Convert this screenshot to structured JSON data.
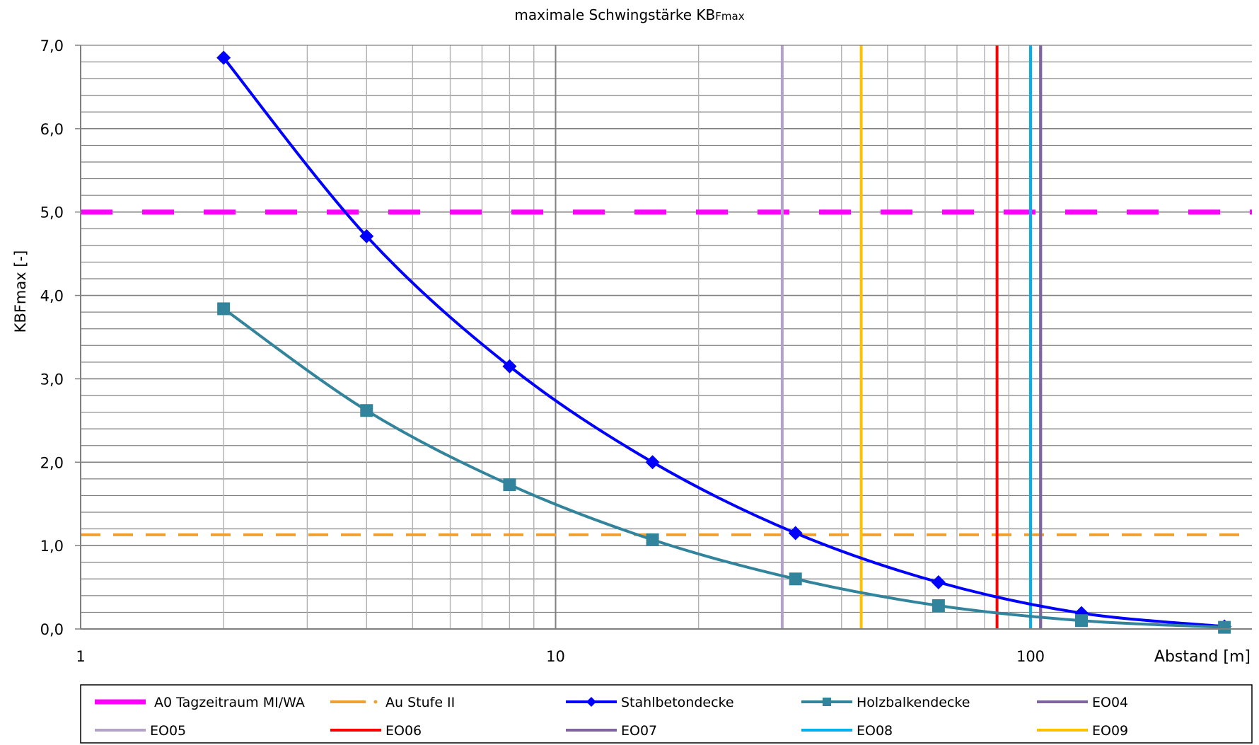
{
  "chart_data": {
    "type": "line",
    "title_main": "maximale Schwingstärke KB",
    "title_sub": "Fmax",
    "ylabel": "KBFmax [-]",
    "xlabel": "Abstand [m]",
    "x_scale": "log",
    "xlim": [
      1,
      140
    ],
    "ylim": [
      0,
      7
    ],
    "grid": true,
    "y_ticks": [
      "0,0",
      "1,0",
      "2,0",
      "3,0",
      "4,0",
      "5,0",
      "6,0",
      "7,0"
    ],
    "x_ticks": [
      "1",
      "10",
      "100"
    ],
    "legend_position": "bottom",
    "series": [
      {
        "name": "Stahlbetondecke",
        "color": "#0000ff",
        "marker": "diamond",
        "x": [
          2,
          4,
          8,
          16,
          32,
          64,
          128,
          256
        ],
        "y": [
          6.85,
          4.71,
          3.15,
          2.0,
          1.15,
          0.56,
          0.19,
          0.03
        ]
      },
      {
        "name": "Holzbalkendecke",
        "color": "#31849b",
        "marker": "square",
        "x": [
          2,
          4,
          8,
          16,
          32,
          64,
          128,
          256
        ],
        "y": [
          3.84,
          2.62,
          1.73,
          1.07,
          0.6,
          0.28,
          0.1,
          0.02
        ]
      }
    ],
    "hlines": [
      {
        "name": "A0 Tagzeitraum MI/WA",
        "y": 5.0,
        "color": "#ff00ff",
        "style": "dash-bold"
      },
      {
        "name": "Au Stufe II",
        "y": 1.13,
        "color": "#f0a030",
        "style": "dash"
      }
    ],
    "vlines": [
      {
        "name": "EO04",
        "x": 105,
        "color": "#8064a2"
      },
      {
        "name": "EO05",
        "x": 30,
        "color": "#b3a2c7"
      },
      {
        "name": "EO06",
        "x": 85,
        "color": "#ff0000"
      },
      {
        "name": "EO07",
        "x": 105,
        "color": "#8064a2"
      },
      {
        "name": "EO08",
        "x": 100,
        "color": "#00b0f0"
      },
      {
        "name": "EO09",
        "x": 44,
        "color": "#ffc000"
      }
    ],
    "legend": [
      {
        "label": "A0 Tagzeitraum MI/WA",
        "color": "#ff00ff",
        "kind": "dash-bold"
      },
      {
        "label": "Au Stufe II",
        "color": "#f0a030",
        "kind": "dash"
      },
      {
        "label": "Stahlbetondecke",
        "color": "#0000ff",
        "kind": "diamond"
      },
      {
        "label": "Holzbalkendecke",
        "color": "#31849b",
        "kind": "square"
      },
      {
        "label": "EO04",
        "color": "#8064a2",
        "kind": "line"
      },
      {
        "label": "EO05",
        "color": "#b3a2c7",
        "kind": "line"
      },
      {
        "label": "EO06",
        "color": "#ff0000",
        "kind": "line"
      },
      {
        "label": "EO07",
        "color": "#8064a2",
        "kind": "line"
      },
      {
        "label": "EO08",
        "color": "#00b0f0",
        "kind": "line"
      },
      {
        "label": "EO09",
        "color": "#ffc000",
        "kind": "line"
      }
    ]
  }
}
